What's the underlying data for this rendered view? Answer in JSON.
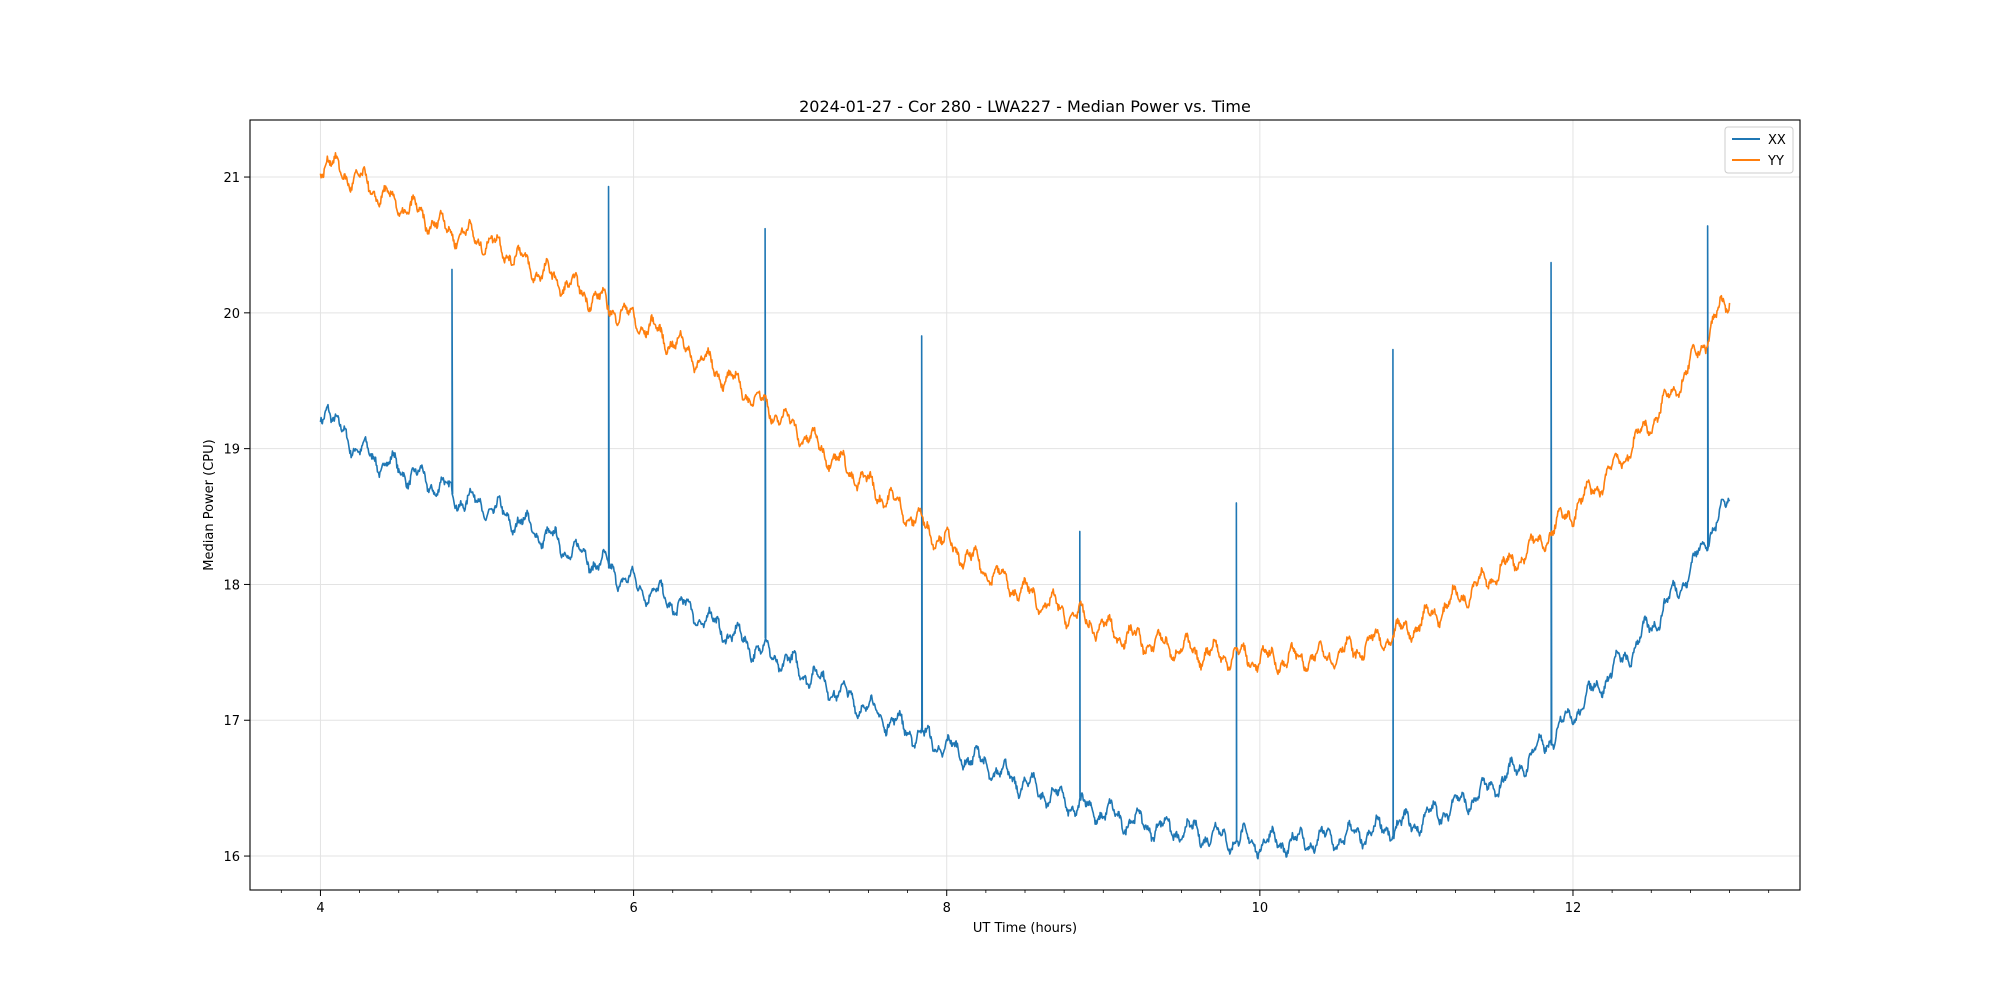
{
  "chart_data": {
    "type": "line",
    "title": "2024-01-27 - Cor 280 - LWA227 - Median Power vs. Time",
    "xlabel": "UT Time (hours)",
    "ylabel": "Median Power (CPU)",
    "xlim": [
      3.55,
      13.45
    ],
    "ylim": [
      15.75,
      21.42
    ],
    "xticks": [
      4,
      6,
      8,
      10,
      12
    ],
    "xtick_labels": [
      "4",
      "6",
      "8",
      "10",
      "12"
    ],
    "yticks": [
      16,
      17,
      18,
      19,
      20,
      21
    ],
    "ytick_labels": [
      "16",
      "17",
      "18",
      "19",
      "20",
      "21"
    ],
    "grid": true,
    "legend_position": "top-right",
    "series": [
      {
        "name": "XX",
        "color": "#1f77b4",
        "x": [
          4.0,
          4.05,
          4.1,
          4.2,
          4.3,
          4.4,
          4.5,
          4.6,
          4.7,
          4.8,
          4.9,
          5.0,
          5.2,
          5.4,
          5.6,
          5.8,
          6.0,
          6.2,
          6.4,
          6.6,
          6.8,
          7.0,
          7.2,
          7.4,
          7.6,
          7.8,
          8.0,
          8.2,
          8.4,
          8.6,
          8.8,
          9.0,
          9.2,
          9.4,
          9.6,
          9.8,
          10.0,
          10.2,
          10.4,
          10.6,
          10.8,
          11.0,
          11.2,
          11.4,
          11.6,
          11.8,
          12.0,
          12.2,
          12.4,
          12.6,
          12.8,
          12.9,
          13.0
        ],
        "y": [
          19.25,
          19.35,
          19.15,
          19.05,
          18.95,
          18.9,
          18.85,
          18.8,
          18.75,
          18.7,
          18.62,
          18.6,
          18.5,
          18.38,
          18.25,
          18.15,
          18.0,
          17.9,
          17.78,
          17.65,
          17.52,
          17.42,
          17.28,
          17.15,
          17.02,
          16.9,
          16.8,
          16.7,
          16.58,
          16.48,
          16.38,
          16.32,
          16.25,
          16.2,
          16.17,
          16.13,
          16.1,
          16.1,
          16.12,
          16.15,
          16.2,
          16.25,
          16.35,
          16.45,
          16.6,
          16.8,
          17.05,
          17.3,
          17.55,
          17.85,
          18.2,
          18.45,
          18.6
        ],
        "spikes": [
          {
            "x": 4.84,
            "y": 20.32
          },
          {
            "x": 5.84,
            "y": 20.93
          },
          {
            "x": 6.84,
            "y": 20.62
          },
          {
            "x": 7.84,
            "y": 19.83
          },
          {
            "x": 8.85,
            "y": 18.39
          },
          {
            "x": 9.85,
            "y": 18.6
          },
          {
            "x": 10.85,
            "y": 19.73
          },
          {
            "x": 11.86,
            "y": 20.37
          },
          {
            "x": 12.86,
            "y": 20.64
          }
        ]
      },
      {
        "name": "YY",
        "color": "#ff7f0e",
        "x": [
          4.0,
          4.05,
          4.1,
          4.2,
          4.3,
          4.4,
          4.5,
          4.6,
          4.7,
          4.8,
          4.9,
          5.0,
          5.2,
          5.4,
          5.6,
          5.8,
          6.0,
          6.2,
          6.4,
          6.6,
          6.8,
          7.0,
          7.2,
          7.4,
          7.6,
          7.8,
          8.0,
          8.2,
          8.4,
          8.6,
          8.8,
          9.0,
          9.2,
          9.4,
          9.6,
          9.8,
          10.0,
          10.2,
          10.4,
          10.6,
          10.8,
          11.0,
          11.2,
          11.4,
          11.6,
          11.8,
          12.0,
          12.2,
          12.4,
          12.6,
          12.8,
          12.9,
          13.0
        ],
        "y": [
          21.1,
          21.12,
          21.05,
          21.0,
          20.95,
          20.85,
          20.8,
          20.75,
          20.68,
          20.62,
          20.58,
          20.55,
          20.45,
          20.3,
          20.2,
          20.08,
          19.95,
          19.82,
          19.68,
          19.52,
          19.35,
          19.18,
          19.0,
          18.82,
          18.65,
          18.48,
          18.3,
          18.15,
          18.0,
          17.88,
          17.78,
          17.68,
          17.6,
          17.55,
          17.5,
          17.48,
          17.45,
          17.45,
          17.47,
          17.52,
          17.6,
          17.7,
          17.85,
          18.0,
          18.15,
          18.32,
          18.55,
          18.78,
          19.05,
          19.35,
          19.7,
          19.95,
          20.08
        ],
        "spikes": []
      }
    ]
  }
}
